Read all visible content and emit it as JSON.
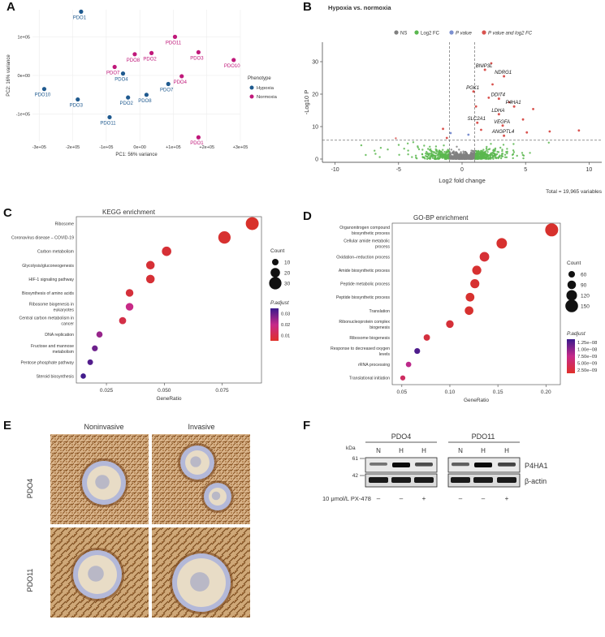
{
  "panel_labels": [
    "A",
    "B",
    "C",
    "D",
    "E",
    "F"
  ],
  "colors": {
    "hypoxia": "#1f5a8f",
    "normoxia": "#c0187a",
    "ns": "#808080",
    "log2fc": "#5ab74f",
    "pvalue": "#7b8fd0",
    "both": "#d9534f",
    "padj_high": "#3a1a8c",
    "padj_mid": "#c62a8a",
    "padj_low": "#d8312a"
  },
  "chart_data": [
    {
      "id": "A",
      "type": "scatter",
      "title": "",
      "xlabel": "PC1: 56% variance",
      "ylabel": "PC2: 16% variance",
      "xlim": [
        -320000,
        300000
      ],
      "ylim": [
        -170000,
        170000
      ],
      "xticks": [
        "-3e+05",
        "-2e+05",
        "-1e+05",
        "0e+00",
        "+1e+05",
        "+2e+05",
        "+3e+05"
      ],
      "xtick_values": [
        -300000,
        -200000,
        -100000,
        0,
        100000,
        200000,
        300000
      ],
      "yticks": [
        "-1e+05",
        "0e+00",
        "1e+05"
      ],
      "ytick_values": [
        -100000,
        0,
        100000
      ],
      "legend_title": "Phenotype",
      "legend": [
        "Hypoxia",
        "Normoxia"
      ],
      "points": [
        {
          "label": "PDO1",
          "x": -175000,
          "y": 165000,
          "group": "Hypoxia"
        },
        {
          "label": "PDO4",
          "x": -50000,
          "y": 5000,
          "group": "Hypoxia"
        },
        {
          "label": "PDO10",
          "x": -285000,
          "y": -35000,
          "group": "Hypoxia"
        },
        {
          "label": "PDO3",
          "x": -185000,
          "y": -62000,
          "group": "Hypoxia"
        },
        {
          "label": "PDO2",
          "x": -35000,
          "y": -57000,
          "group": "Hypoxia"
        },
        {
          "label": "PDO8",
          "x": 20000,
          "y": -50000,
          "group": "Hypoxia"
        },
        {
          "label": "PDO7",
          "x": 85000,
          "y": -22000,
          "group": "Hypoxia"
        },
        {
          "label": "PDO11",
          "x": -90000,
          "y": -108000,
          "group": "Hypoxia"
        },
        {
          "label": "PDO11",
          "x": 105000,
          "y": 100000,
          "group": "Normoxia"
        },
        {
          "label": "PDO8",
          "x": -15000,
          "y": 55000,
          "group": "Normoxia"
        },
        {
          "label": "PDO2",
          "x": 35000,
          "y": 58000,
          "group": "Normoxia"
        },
        {
          "label": "PDO3",
          "x": 175000,
          "y": 60000,
          "group": "Normoxia"
        },
        {
          "label": "PDO7",
          "x": -75000,
          "y": 22000,
          "group": "Normoxia"
        },
        {
          "label": "PDO10",
          "x": 280000,
          "y": 40000,
          "group": "Normoxia"
        },
        {
          "label": "PDO4",
          "x": 125000,
          "y": -2000,
          "group": "Normoxia"
        },
        {
          "label": "PDO1",
          "x": 175000,
          "y": -160000,
          "group": "Normoxia"
        }
      ]
    },
    {
      "id": "B",
      "type": "scatter",
      "title": "Hypoxia vs. normoxia",
      "xlabel": "Log2 fold change",
      "ylabel": "-Log10 P",
      "xlim": [
        -11,
        11
      ],
      "ylim": [
        -1,
        36
      ],
      "xticks": [
        "-10",
        "-5",
        "0",
        "5",
        "10"
      ],
      "xtick_values": [
        -10,
        -5,
        0,
        5,
        10
      ],
      "yticks": [
        "0",
        "10",
        "20",
        "30"
      ],
      "ytick_values": [
        0,
        10,
        20,
        30
      ],
      "legend": [
        "NS",
        "Log2 FC",
        "P value",
        "P value and log2 FC"
      ],
      "caption": "Total = 19,965 variables",
      "fc_cutoff": 1,
      "p_cutoff": 5.8,
      "genes": [
        {
          "label": "BNIP3L",
          "x": 1.8,
          "y": 27.5
        },
        {
          "label": "NDRG1",
          "x": 3.3,
          "y": 25.5
        },
        {
          "label": "PGK1",
          "x": 0.9,
          "y": 20.8
        },
        {
          "label": "DDIT4",
          "x": 2.9,
          "y": 18.6
        },
        {
          "label": "P4HA1",
          "x": 4.1,
          "y": 16.2
        },
        {
          "label": "LDHA",
          "x": 2.9,
          "y": 13.8
        },
        {
          "label": "SLC2A1",
          "x": 1.2,
          "y": 11.2
        },
        {
          "label": "VEGFA",
          "x": 3.2,
          "y": 10.3
        },
        {
          "label": "ANGPTL4",
          "x": 3.3,
          "y": 7.2
        }
      ],
      "extra_points": [
        {
          "x": 2.3,
          "y": 29.5
        },
        {
          "x": 5.6,
          "y": 15.4
        },
        {
          "x": 6.9,
          "y": 8.5
        },
        {
          "x": 9.2,
          "y": 8.8
        },
        {
          "x": 4.8,
          "y": 12.2
        },
        {
          "x": 5.1,
          "y": 8.2
        },
        {
          "x": 3.7,
          "y": 17.5
        },
        {
          "x": 1.1,
          "y": 16.2
        },
        {
          "x": 2.1,
          "y": 18.9
        },
        {
          "x": 2.4,
          "y": 23.0
        },
        {
          "x": 1.5,
          "y": 9.0
        },
        {
          "x": -1.5,
          "y": 9.3
        },
        {
          "x": -0.9,
          "y": 8.0
        },
        {
          "x": -1.2,
          "y": 6.5
        },
        {
          "x": 0.5,
          "y": 7.5
        }
      ]
    },
    {
      "id": "C",
      "type": "scatter",
      "title": "KEGG enrichment",
      "xlabel": "GeneRatio",
      "xlim": [
        0.012,
        0.092
      ],
      "xticks": [
        "0.025",
        "0.050",
        "0.075"
      ],
      "xtick_values": [
        0.025,
        0.05,
        0.075
      ],
      "size_title": "Count",
      "size_legend": [
        "10",
        "20",
        "30"
      ],
      "color_title": "P.adjust",
      "color_legend": [
        "0.03",
        "0.02",
        "0.01"
      ],
      "terms": [
        {
          "term": [
            "Ribosome"
          ],
          "ratio": 0.088,
          "count": 32,
          "padj": 0.001
        },
        {
          "term": [
            "Coronavirus disease – COVID-19"
          ],
          "ratio": 0.076,
          "count": 30,
          "padj": 0.002
        },
        {
          "term": [
            "Carbon metabolism"
          ],
          "ratio": 0.051,
          "count": 20,
          "padj": 0.003
        },
        {
          "term": [
            "Glycolysis/gluconeogenesis"
          ],
          "ratio": 0.044,
          "count": 17,
          "padj": 0.003
        },
        {
          "term": [
            "HIF-1 signaling pathway"
          ],
          "ratio": 0.044,
          "count": 17,
          "padj": 0.003
        },
        {
          "term": [
            "Biosynthesis of amino acids"
          ],
          "ratio": 0.035,
          "count": 14,
          "padj": 0.004
        },
        {
          "term": [
            "Ribosome biogenesis in",
            "eukaryotes"
          ],
          "ratio": 0.035,
          "count": 14,
          "padj": 0.017
        },
        {
          "term": [
            "Central carbon metabolism in",
            "cancer"
          ],
          "ratio": 0.032,
          "count": 12,
          "padj": 0.006
        },
        {
          "term": [
            "DNA replication"
          ],
          "ratio": 0.022,
          "count": 9,
          "padj": 0.023
        },
        {
          "term": [
            "Fructose and mannose",
            "metabolism"
          ],
          "ratio": 0.02,
          "count": 8,
          "padj": 0.028
        },
        {
          "term": [
            "Pentose phosphate pathway"
          ],
          "ratio": 0.018,
          "count": 7,
          "padj": 0.031
        },
        {
          "term": [
            "Steroid biosynthesis"
          ],
          "ratio": 0.015,
          "count": 6,
          "padj": 0.033
        }
      ]
    },
    {
      "id": "D",
      "type": "scatter",
      "title": "GO-BP enrichment",
      "xlabel": "GeneRatio",
      "xlim": [
        0.04,
        0.215
      ],
      "xticks": [
        "0.05",
        "0.10",
        "0.15",
        "0.20"
      ],
      "xtick_values": [
        0.05,
        0.1,
        0.15,
        0.2
      ],
      "size_title": "Count",
      "size_legend": [
        "60",
        "90",
        "120",
        "150"
      ],
      "color_title": "P.adjust",
      "color_legend": [
        "1.25e−08",
        "1.00e−08",
        "7.50e−09",
        "5.00e−09",
        "2.50e−09"
      ],
      "terms": [
        {
          "term": [
            "Organonitrogen compound",
            "biosynthetic process"
          ],
          "ratio": 0.206,
          "count": 155,
          "padj": 2e-10
        },
        {
          "term": [
            "Cellular amide metabolic",
            "process"
          ],
          "ratio": 0.154,
          "count": 118,
          "padj": 4e-10
        },
        {
          "term": [
            "Oxidation–reduction process"
          ],
          "ratio": 0.136,
          "count": 105,
          "padj": 9e-10
        },
        {
          "term": [
            "Amide biosynthetic process"
          ],
          "ratio": 0.128,
          "count": 98,
          "padj": 5e-10
        },
        {
          "term": [
            "Peptide metabolic process"
          ],
          "ratio": 0.126,
          "count": 97,
          "padj": 5e-10
        },
        {
          "term": [
            "Peptide biosynthetic process"
          ],
          "ratio": 0.121,
          "count": 92,
          "padj": 4e-10
        },
        {
          "term": [
            "Translation"
          ],
          "ratio": 0.12,
          "count": 91,
          "padj": 4e-10
        },
        {
          "term": [
            "Ribonucleoprotein complex",
            "biogenesis"
          ],
          "ratio": 0.1,
          "count": 76,
          "padj": 1e-09
        },
        {
          "term": [
            "Ribosome biogenesis"
          ],
          "ratio": 0.076,
          "count": 58,
          "padj": 1.5e-09
        },
        {
          "term": [
            "Response to decreased oxygen",
            "levels"
          ],
          "ratio": 0.066,
          "count": 50,
          "padj": 1.3e-08
        },
        {
          "term": [
            "rRNA processing"
          ],
          "ratio": 0.057,
          "count": 44,
          "padj": 7.5e-09
        },
        {
          "term": [
            "Translational initiation"
          ],
          "ratio": 0.051,
          "count": 39,
          "padj": 4e-09
        }
      ]
    }
  ],
  "panelE": {
    "columns": [
      "Noninvasive",
      "Invasive"
    ],
    "rows": [
      "PDO4",
      "PDO11"
    ]
  },
  "panelF": {
    "groups": [
      "PDO4",
      "PDO11"
    ],
    "lanes": [
      "N",
      "H",
      "H",
      "N",
      "H",
      "H"
    ],
    "kda_label": "kDa",
    "markers": [
      "61",
      "42"
    ],
    "bands": [
      "P4HA1",
      "β-actin"
    ],
    "treatment_label": "10 μmol/L PX-478",
    "treatment": [
      "–",
      "–",
      "+",
      "–",
      "–",
      "+"
    ],
    "p4ha1_intensity": [
      0.45,
      1.0,
      0.65,
      0.55,
      1.0,
      0.7
    ]
  }
}
